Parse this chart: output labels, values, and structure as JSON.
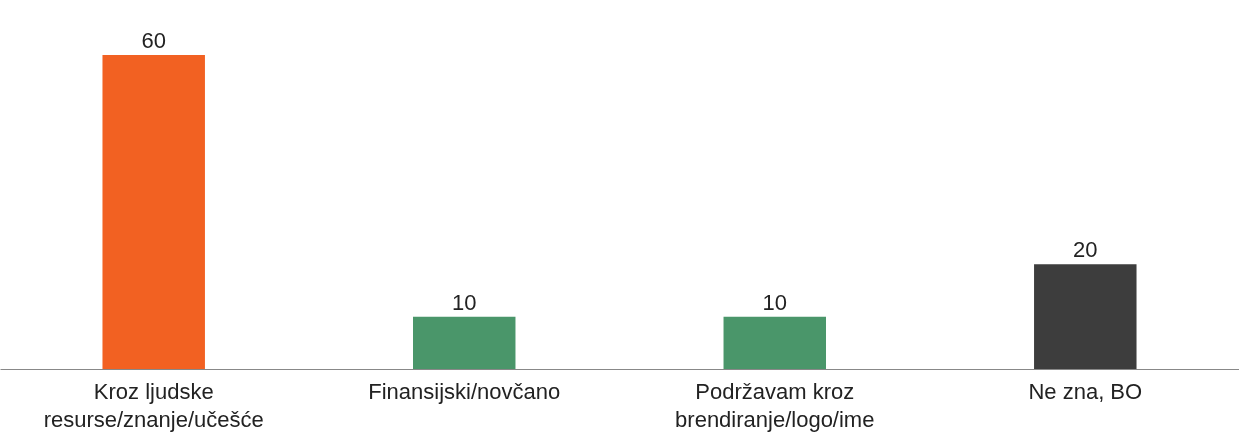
{
  "chart_data": {
    "type": "bar",
    "categories": [
      "Kroz ljudske\nresurse/znanje/učešće",
      "Finansijski/novčano",
      "Podržavam kroz\nbrendiranje/logo/ime",
      "Ne zna, BO"
    ],
    "values": [
      60,
      10,
      10,
      20
    ],
    "colors": [
      "#f26122",
      "#4a966a",
      "#4a966a",
      "#3d3d3d"
    ],
    "data_labels": true
  }
}
